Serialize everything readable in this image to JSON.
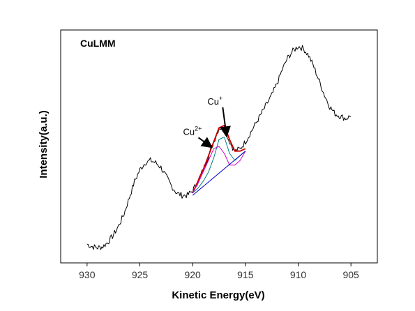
{
  "chart_data": {
    "type": "line",
    "title": "CuLMM",
    "xlabel": "Kinetic Energy(eV)",
    "ylabel": "Intensity(a.u.)",
    "xlim": [
      932.5,
      902.5
    ],
    "ylim": [
      0,
      100
    ],
    "x_reversed": true,
    "xticks": [
      930,
      925,
      920,
      915,
      910,
      905
    ],
    "xtick_labels": [
      "930",
      "925",
      "920",
      "915",
      "910",
      "905"
    ],
    "yticks_shown": false,
    "grid": false,
    "series": [
      {
        "color": "#000000",
        "style": "noisy-raw",
        "x": [
          930.0,
          929.5,
          929.0,
          928.5,
          928.0,
          927.5,
          927.0,
          926.5,
          926.0,
          925.5,
          925.0,
          924.5,
          924.0,
          923.5,
          923.0,
          922.5,
          922.0,
          921.5,
          921.0,
          920.5,
          920.0,
          919.5,
          919.0,
          918.5,
          918.0,
          917.5,
          917.0,
          916.5,
          916.0,
          915.5,
          915.0,
          914.5,
          914.0,
          913.5,
          913.0,
          912.5,
          912.0,
          911.5,
          911.0,
          910.5,
          910.0,
          909.5,
          909.0,
          908.5,
          908.0,
          907.5,
          907.0,
          906.5,
          906.0,
          905.5,
          905.0
        ],
        "y": [
          8,
          7,
          6.5,
          7,
          9,
          12,
          16,
          21,
          28,
          35,
          40,
          43,
          44,
          43,
          41,
          37,
          33,
          30,
          29,
          29,
          31,
          35,
          40,
          46,
          52,
          58,
          58,
          52,
          48,
          49,
          52,
          56,
          60,
          64,
          68,
          72,
          77,
          83,
          88,
          91,
          93,
          92,
          89,
          84,
          78,
          72,
          67,
          64,
          63,
          62,
          63
        ]
      },
      {
        "color": "#cc0000",
        "style": "envelope",
        "x": [
          920.0,
          919.5,
          919.0,
          918.5,
          918.0,
          917.5,
          917.0,
          916.5,
          916.0,
          915.5,
          915.0
        ],
        "y": [
          30,
          35,
          40,
          46,
          52,
          58,
          59,
          53,
          48,
          48,
          49
        ]
      },
      {
        "color": "#008080",
        "style": "Cu+ component",
        "x": [
          920.0,
          919.5,
          919.0,
          918.5,
          918.0,
          917.5,
          917.0,
          916.5,
          916.0,
          915.5,
          915.0
        ],
        "y": [
          30,
          32,
          35,
          39,
          45,
          53,
          54,
          47,
          44,
          46,
          48
        ]
      },
      {
        "color": "#cc00cc",
        "style": "Cu2+ component",
        "x": [
          920.0,
          919.5,
          919.0,
          918.5,
          918.0,
          917.5,
          917.0,
          916.5,
          916.0,
          915.5,
          915.0
        ],
        "y": [
          30,
          34,
          39,
          44,
          49,
          50,
          47,
          42,
          42,
          44,
          48
        ]
      },
      {
        "color": "#0000cc",
        "style": "baseline",
        "x": [
          920.0,
          915.0
        ],
        "y": [
          29,
          48
        ]
      }
    ],
    "annotations": [
      {
        "base": "Cu",
        "sup": "+",
        "x": 918.6,
        "y": 68,
        "arrow_to": [
          916.8,
          55
        ]
      },
      {
        "base": "Cu",
        "sup": "2+",
        "x": 920.9,
        "y": 55,
        "arrow_to": [
          918.3,
          50
        ]
      }
    ]
  }
}
